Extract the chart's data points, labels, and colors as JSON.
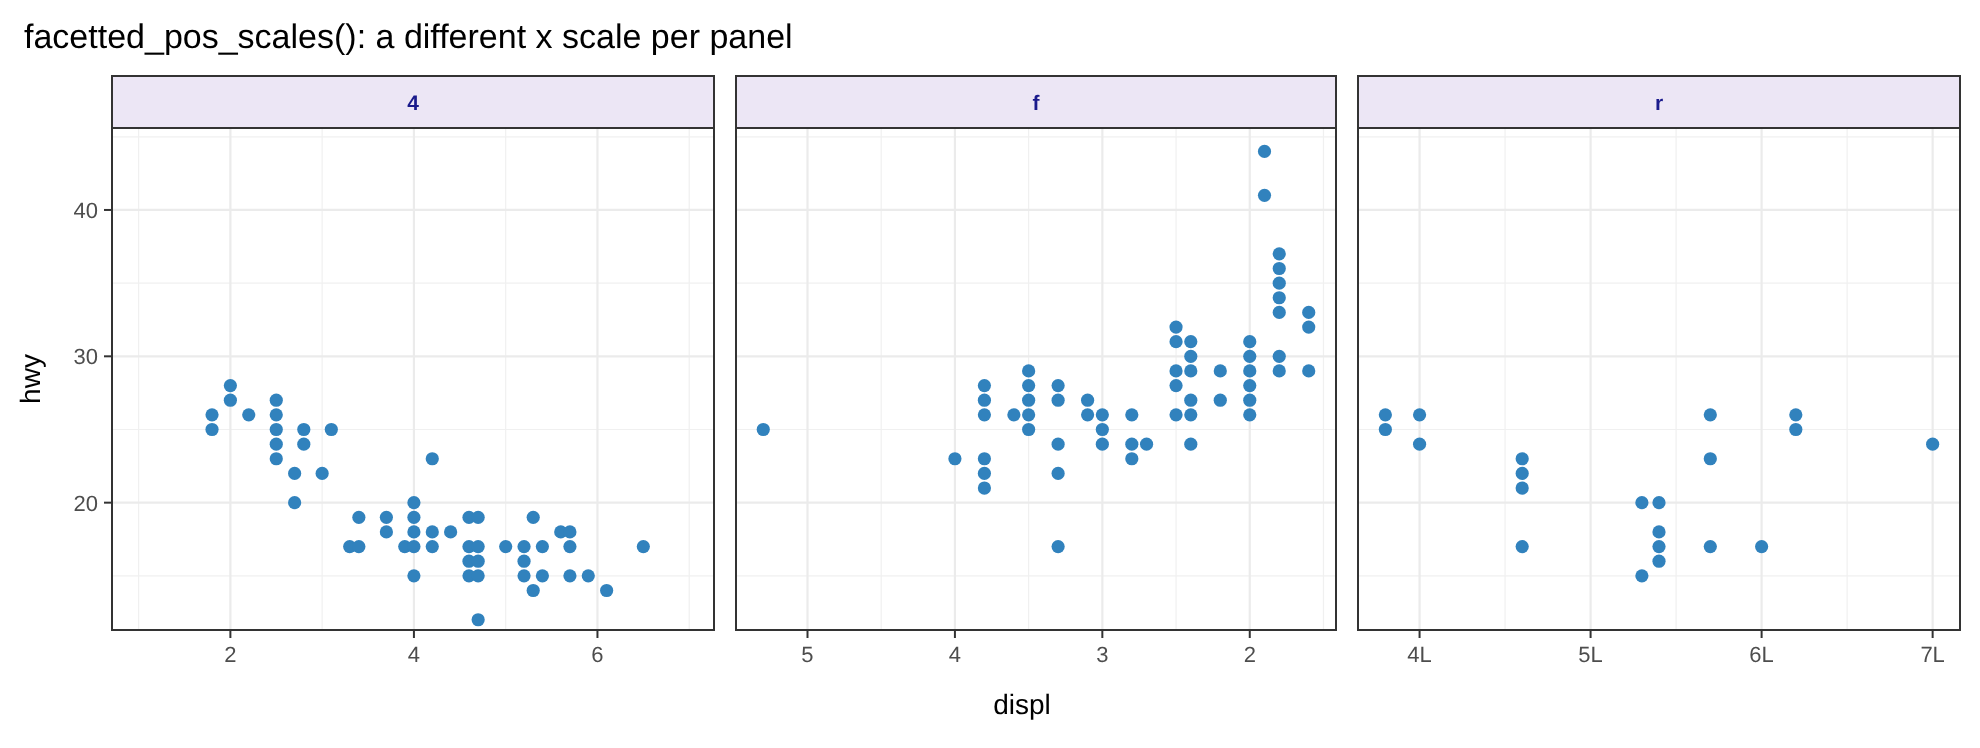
{
  "chart_data": [
    {
      "type": "scatter",
      "title": "facetted_pos_scales(): a different x scale per panel",
      "subtitle": "4",
      "ylabel": "hwy",
      "grid": true,
      "marker": "circle",
      "xlim": [
        0.71,
        7.27
      ],
      "xticks": [
        2,
        4,
        6
      ],
      "ylim": [
        11.3,
        45.6
      ],
      "yticks": [
        20,
        30,
        40
      ],
      "series": [
        {
          "color": "#3182bd",
          "x": [
            1.8,
            1.8,
            2.0,
            2.0,
            2.2,
            2.5,
            2.5,
            2.5,
            2.5,
            2.5,
            2.7,
            2.7,
            2.8,
            2.8,
            3.0,
            3.1,
            3.3,
            3.4,
            3.4,
            3.7,
            3.7,
            3.9,
            4.0,
            4.0,
            4.0,
            4.0,
            4.0,
            4.2,
            4.2,
            4.2,
            4.4,
            4.6,
            4.6,
            4.6,
            4.6,
            4.7,
            4.7,
            4.7,
            4.7,
            4.7,
            5.0,
            5.2,
            5.2,
            5.2,
            5.3,
            5.3,
            5.4,
            5.4,
            5.6,
            5.7,
            5.7,
            5.7,
            5.9,
            6.1,
            6.5
          ],
          "values": [
            26,
            25,
            28,
            27,
            26,
            27,
            26,
            25,
            24,
            23,
            22,
            20,
            25,
            24,
            22,
            25,
            17,
            19,
            17,
            19,
            18,
            17,
            20,
            19,
            18,
            17,
            15,
            23,
            18,
            17,
            18,
            19,
            17,
            16,
            15,
            19,
            17,
            16,
            15,
            12,
            17,
            17,
            16,
            15,
            19,
            14,
            17,
            15,
            18,
            18,
            17,
            15,
            15,
            14,
            17
          ]
        }
      ]
    },
    {
      "type": "scatter",
      "subtitle": "f",
      "xlabel": "displ",
      "grid": true,
      "marker": "circle",
      "tick_labels": "x",
      "xlim": [
        5.485,
        1.415
      ],
      "xticks": [
        5,
        4,
        3,
        2
      ],
      "ylim": [
        11.3,
        45.6
      ],
      "yticks": [
        20,
        30,
        40
      ],
      "series": [
        {
          "color": "#3182bd",
          "x": [
            5.3,
            4.0,
            3.8,
            3.8,
            3.8,
            3.8,
            3.8,
            3.8,
            3.6,
            3.5,
            3.5,
            3.5,
            3.5,
            3.5,
            3.3,
            3.3,
            3.3,
            3.3,
            3.3,
            3.1,
            3.1,
            3.0,
            3.0,
            3.0,
            2.8,
            2.8,
            2.8,
            2.7,
            2.5,
            2.5,
            2.5,
            2.5,
            2.5,
            2.4,
            2.4,
            2.4,
            2.4,
            2.4,
            2.4,
            2.2,
            2.2,
            2.0,
            2.0,
            2.0,
            2.0,
            2.0,
            2.0,
            1.9,
            1.9,
            1.8,
            1.8,
            1.8,
            1.8,
            1.8,
            1.8,
            1.8,
            1.6,
            1.6,
            1.6
          ],
          "values": [
            25,
            23,
            28,
            27,
            26,
            23,
            22,
            21,
            26,
            29,
            28,
            27,
            26,
            25,
            28,
            27,
            24,
            22,
            17,
            27,
            26,
            26,
            25,
            24,
            26,
            24,
            23,
            24,
            32,
            31,
            29,
            28,
            26,
            31,
            30,
            29,
            27,
            26,
            24,
            29,
            27,
            31,
            30,
            29,
            28,
            27,
            26,
            44,
            41,
            37,
            36,
            35,
            34,
            33,
            30,
            29,
            33,
            32,
            29
          ]
        }
      ]
    },
    {
      "type": "scatter",
      "subtitle": "r",
      "grid": true,
      "marker": "circle",
      "tick_labels": "x",
      "xlim": [
        3.64,
        7.16
      ],
      "xticks": [
        {
          "value": 4,
          "label": "4L"
        },
        {
          "value": 5,
          "label": "5L"
        },
        {
          "value": 6,
          "label": "6L"
        },
        {
          "value": 7,
          "label": "7L"
        }
      ],
      "ylim": [
        11.3,
        45.6
      ],
      "yticks": [
        20,
        30,
        40
      ],
      "series": [
        {
          "color": "#3182bd",
          "x": [
            3.8,
            3.8,
            4.0,
            4.0,
            4.6,
            4.6,
            4.6,
            4.6,
            5.3,
            5.3,
            5.4,
            5.4,
            5.4,
            5.4,
            5.7,
            5.7,
            5.7,
            6.0,
            6.2,
            6.2,
            7.0
          ],
          "values": [
            26,
            25,
            26,
            24,
            23,
            22,
            21,
            17,
            20,
            15,
            20,
            18,
            17,
            16,
            26,
            23,
            17,
            17,
            26,
            25,
            24
          ]
        }
      ]
    }
  ]
}
